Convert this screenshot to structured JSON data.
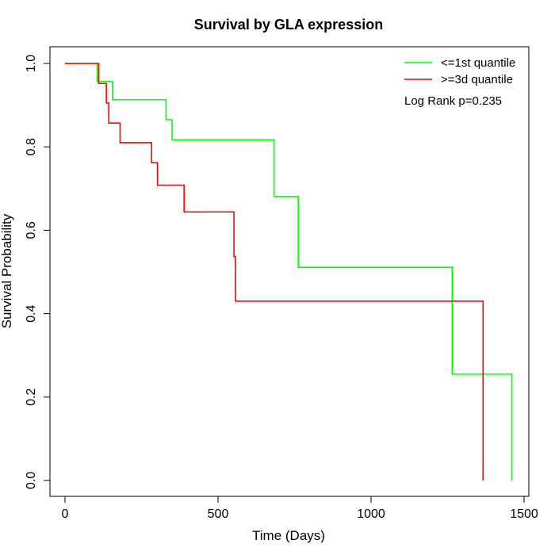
{
  "chart_data": {
    "type": "line",
    "title": "Survival by GLA expression",
    "xlabel": "Time (Days)",
    "ylabel": "Survival Probability",
    "xlim": [
      0,
      1500
    ],
    "ylim": [
      0,
      1
    ],
    "x_ticks": [
      "0",
      "500",
      "1000",
      "1500"
    ],
    "y_ticks": [
      "0.0",
      "0.2",
      "0.4",
      "0.6",
      "0.8",
      "1.0"
    ],
    "grid": false,
    "legend_position": "top-right",
    "annotation": "Log Rank p=0.235",
    "series": [
      {
        "name": "<=1st quantile",
        "color": "#00FF00",
        "step_x": [
          0,
          105,
          155,
          330,
          350,
          683,
          762,
          1265,
          1460
        ],
        "step_y": [
          1.0,
          0.957,
          0.913,
          0.865,
          0.817,
          0.681,
          0.511,
          0.255,
          0.0
        ]
      },
      {
        "name": ">=3d quantile",
        "color": "#FF0000",
        "step_x": [
          0,
          110,
          135,
          143,
          180,
          283,
          302,
          389,
          552,
          557,
          1366
        ],
        "step_y": [
          1.0,
          0.952,
          0.905,
          0.857,
          0.81,
          0.762,
          0.708,
          0.644,
          0.537,
          0.43,
          0.0
        ]
      }
    ]
  }
}
